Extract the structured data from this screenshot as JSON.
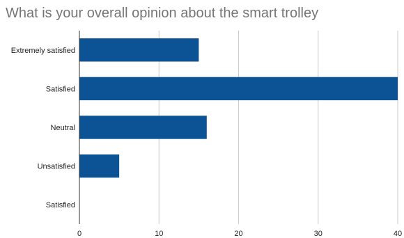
{
  "chart_data": {
    "type": "bar",
    "orientation": "horizontal",
    "title": "What is your overall opinion about the smart trolley",
    "categories": [
      "Extremely satisfied",
      "Satisfied",
      "Neutral",
      "Unsatisfied",
      "Satisfied"
    ],
    "values": [
      15,
      40,
      16,
      5,
      0
    ],
    "xlim": [
      0,
      40
    ],
    "xticks": [
      0,
      10,
      20,
      30,
      40
    ],
    "xlabel": "",
    "ylabel": "",
    "grid": "vertical",
    "legend": "none",
    "bar_color": "#0b5394",
    "grid_color": "#cccccc",
    "axis_color": "#333333"
  }
}
